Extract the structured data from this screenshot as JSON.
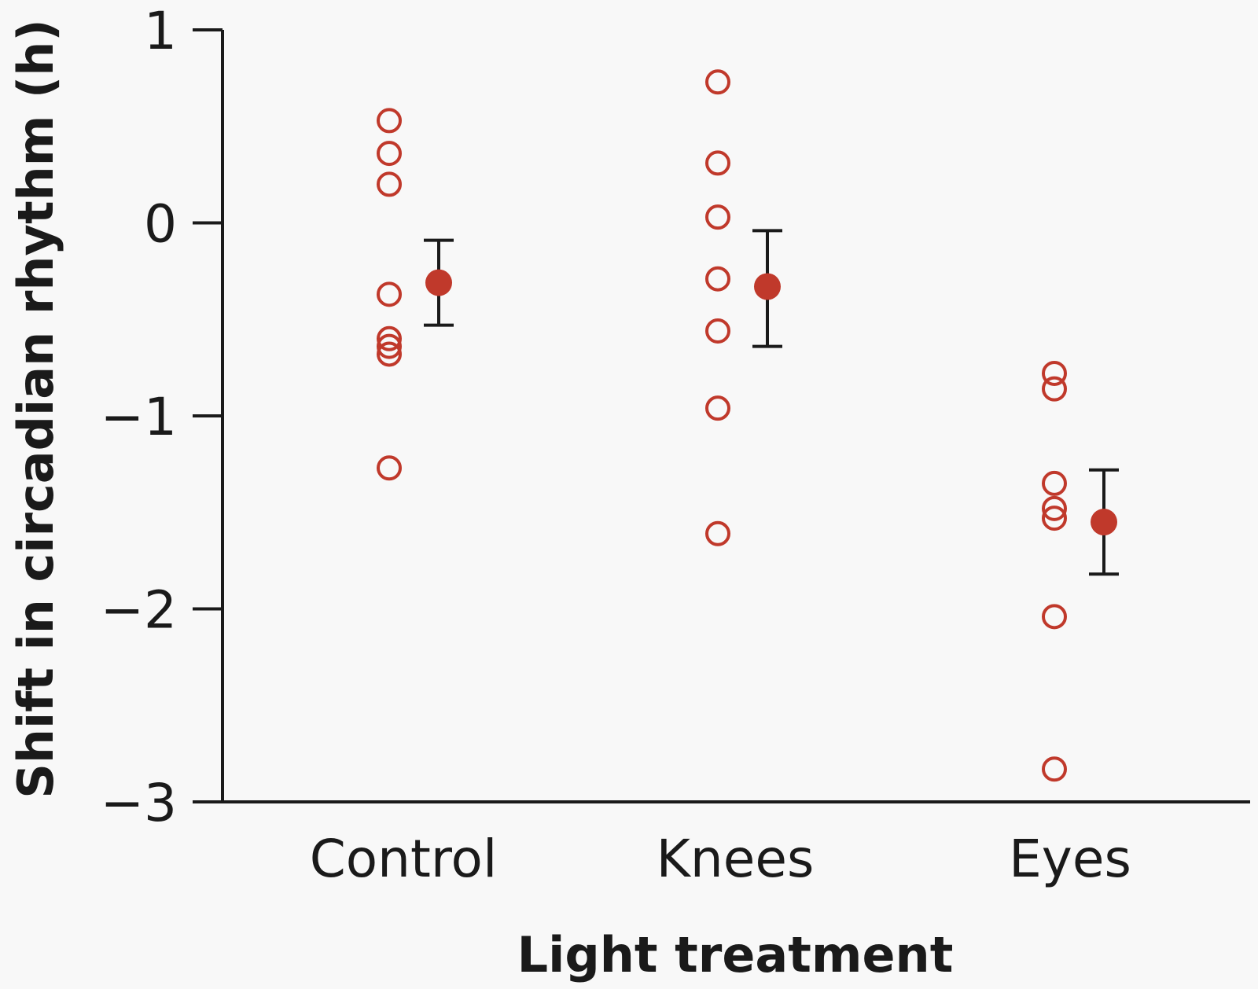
{
  "chart_data": {
    "type": "scatter",
    "title": "",
    "xlabel": "Light treatment",
    "ylabel": "Shift in circadian rhythm (h)",
    "ylim": [
      -3,
      1
    ],
    "yticks": [
      1,
      0,
      -1,
      -2,
      -3
    ],
    "ytick_labels": [
      "1",
      "0",
      "−1",
      "−2",
      "−3"
    ],
    "categories": [
      "Control",
      "Knees",
      "Eyes"
    ],
    "groups": [
      {
        "name": "Control",
        "points": [
          0.53,
          0.36,
          0.2,
          -0.37,
          -0.6,
          -0.64,
          -0.68,
          -1.27
        ],
        "mean": -0.31,
        "error_low": -0.53,
        "error_high": -0.09
      },
      {
        "name": "Knees",
        "points": [
          0.73,
          0.31,
          0.03,
          -0.29,
          -0.56,
          -0.96,
          -1.61
        ],
        "mean": -0.33,
        "error_low": -0.64,
        "error_high": -0.04
      },
      {
        "name": "Eyes",
        "points": [
          -0.78,
          -0.86,
          -1.35,
          -1.48,
          -1.53,
          -2.04,
          -2.83
        ],
        "mean": -1.55,
        "error_low": -1.82,
        "error_high": -1.28
      }
    ],
    "colors": {
      "point": "#c0392b",
      "axis": "#1a1a1a",
      "error": "#1a1a1a"
    }
  }
}
